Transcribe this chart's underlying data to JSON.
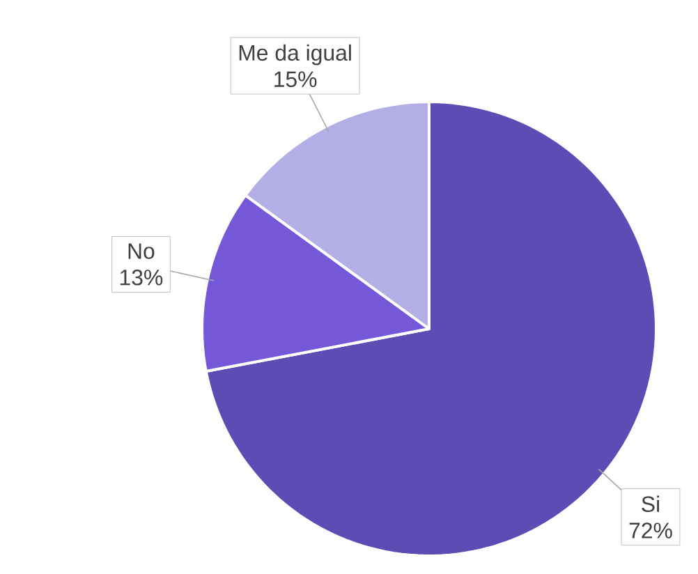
{
  "chart_data": {
    "type": "pie",
    "categories": [
      "Si",
      "No",
      "Me da igual"
    ],
    "values": [
      72,
      13,
      15
    ],
    "value_labels": [
      "72%",
      "13%",
      "15%"
    ],
    "colors": [
      "#5e4bb4",
      "#7558d8",
      "#b4aee6"
    ]
  }
}
